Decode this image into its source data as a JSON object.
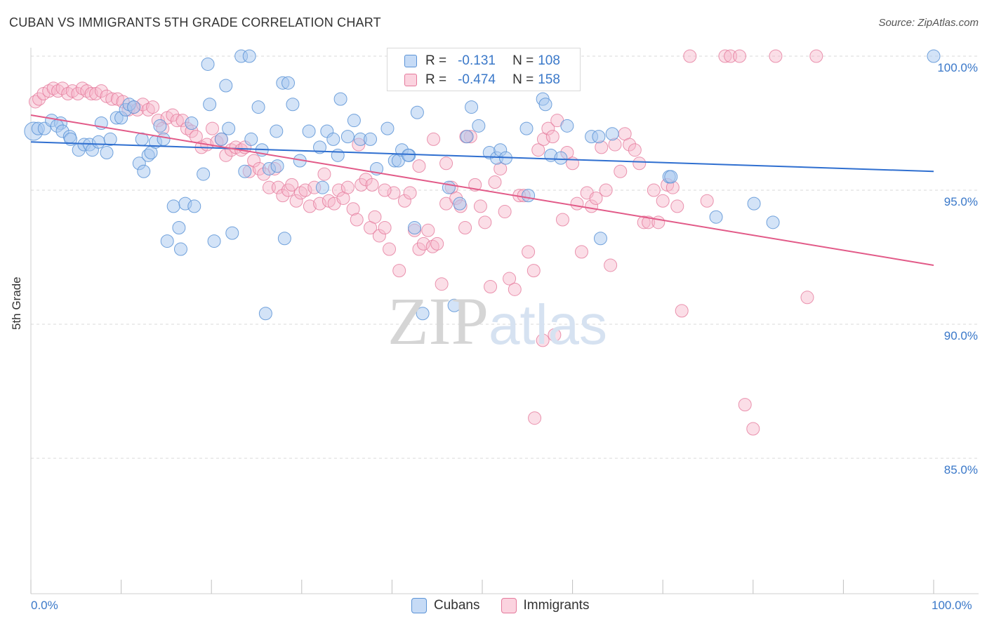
{
  "title": "CUBAN VS IMMIGRANTS 5TH GRADE CORRELATION CHART",
  "source": "Source: ZipAtlas.com",
  "watermark": {
    "zip": "ZIP",
    "atlas": "atlas"
  },
  "legend": {
    "rows": [
      {
        "r_label": "R =",
        "r_value": "-0.131",
        "n_label": "N =",
        "n_value": "108",
        "color": "#a8c8f0"
      },
      {
        "r_label": "R =",
        "r_value": "-0.474",
        "n_label": "N =",
        "n_value": "158",
        "color": "#f7b6c9"
      }
    ]
  },
  "bottom_legend": [
    {
      "label": "Cubans",
      "color": "#a8c8f0"
    },
    {
      "label": "Immigrants",
      "color": "#f7b6c9"
    }
  ],
  "colors": {
    "cuban_fill": "#a8c8f0",
    "cuban_stroke": "#5b93d6",
    "cuban_line": "#2f6fd0",
    "imm_fill": "#f7b6c9",
    "imm_stroke": "#e57a9c",
    "imm_line": "#e25a88",
    "grid": "#d8d8d8",
    "axis_text": "#3a78c9"
  },
  "chart_data": {
    "type": "scatter",
    "title": "CUBAN VS IMMIGRANTS 5TH GRADE CORRELATION CHART",
    "xlabel": "",
    "ylabel": "5th Grade",
    "xlim": [
      0,
      100
    ],
    "ylim": [
      80.5,
      100.5
    ],
    "x_tick_labels": [
      "0.0%",
      "100.0%"
    ],
    "y_ticks": [
      85,
      90,
      95,
      100
    ],
    "y_tick_labels": [
      "85.0%",
      "90.0%",
      "95.0%",
      "100.0%"
    ],
    "grid": true,
    "legend_position": "top-center",
    "series": [
      {
        "name": "Cubans",
        "trend": {
          "x": [
            0,
            100
          ],
          "y": [
            96.8,
            95.7
          ]
        },
        "points": [
          [
            0.3,
            97.2
          ],
          [
            0.8,
            97.3
          ],
          [
            1.5,
            97.3
          ],
          [
            2.3,
            97.6
          ],
          [
            3.3,
            97.5
          ],
          [
            2.9,
            97.4
          ],
          [
            3.5,
            97.2
          ],
          [
            4.3,
            97.0
          ],
          [
            4.4,
            96.9
          ],
          [
            5.3,
            96.5
          ],
          [
            5.9,
            96.7
          ],
          [
            6.5,
            96.7
          ],
          [
            6.8,
            96.5
          ],
          [
            7.5,
            96.8
          ],
          [
            7.8,
            97.5
          ],
          [
            8.4,
            96.4
          ],
          [
            8.8,
            96.9
          ],
          [
            9.5,
            97.7
          ],
          [
            10.0,
            97.7
          ],
          [
            10.5,
            98.0
          ],
          [
            10.9,
            98.2
          ],
          [
            11.4,
            98.1
          ],
          [
            12.0,
            96.0
          ],
          [
            12.3,
            96.9
          ],
          [
            12.5,
            95.7
          ],
          [
            13.0,
            96.3
          ],
          [
            13.3,
            96.4
          ],
          [
            13.8,
            96.8
          ],
          [
            14.3,
            97.4
          ],
          [
            14.7,
            96.9
          ],
          [
            15.1,
            93.1
          ],
          [
            15.8,
            94.4
          ],
          [
            16.4,
            93.6
          ],
          [
            16.6,
            92.8
          ],
          [
            17.1,
            94.5
          ],
          [
            17.8,
            97.5
          ],
          [
            18.1,
            94.4
          ],
          [
            19.1,
            95.6
          ],
          [
            19.6,
            99.7
          ],
          [
            19.8,
            98.2
          ],
          [
            20.3,
            93.1
          ],
          [
            21.1,
            96.9
          ],
          [
            21.6,
            98.9
          ],
          [
            21.9,
            97.3
          ],
          [
            22.3,
            93.4
          ],
          [
            23.3,
            100.0
          ],
          [
            24.2,
            100.0
          ],
          [
            23.7,
            95.7
          ],
          [
            24.4,
            96.9
          ],
          [
            25.2,
            98.1
          ],
          [
            25.6,
            96.5
          ],
          [
            26.4,
            95.8
          ],
          [
            27.2,
            97.2
          ],
          [
            27.9,
            99.0
          ],
          [
            28.5,
            99.0
          ],
          [
            28.1,
            93.2
          ],
          [
            27.3,
            95.9
          ],
          [
            26.0,
            90.4
          ],
          [
            29.0,
            98.2
          ],
          [
            29.8,
            96.1
          ],
          [
            30.8,
            97.2
          ],
          [
            32.0,
            96.6
          ],
          [
            32.3,
            95.1
          ],
          [
            32.8,
            97.2
          ],
          [
            33.5,
            96.9
          ],
          [
            34.0,
            96.3
          ],
          [
            34.3,
            98.4
          ],
          [
            35.1,
            97.0
          ],
          [
            35.8,
            97.6
          ],
          [
            36.5,
            96.9
          ],
          [
            37.6,
            96.9
          ],
          [
            38.3,
            95.8
          ],
          [
            39.5,
            97.3
          ],
          [
            40.3,
            96.1
          ],
          [
            40.7,
            96.1
          ],
          [
            41.1,
            96.5
          ],
          [
            41.9,
            96.3
          ],
          [
            42.5,
            93.6
          ],
          [
            42.8,
            97.9
          ],
          [
            43.4,
            90.4
          ],
          [
            46.3,
            95.1
          ],
          [
            46.9,
            90.7
          ],
          [
            47.5,
            94.5
          ],
          [
            48.3,
            97.0
          ],
          [
            48.8,
            98.1
          ],
          [
            49.6,
            97.4
          ],
          [
            50.8,
            96.4
          ],
          [
            51.6,
            96.2
          ],
          [
            52.0,
            96.5
          ],
          [
            52.6,
            96.2
          ],
          [
            54.9,
            97.3
          ],
          [
            55.1,
            94.8
          ],
          [
            56.7,
            98.4
          ],
          [
            57.0,
            98.2
          ],
          [
            57.6,
            96.3
          ],
          [
            58.7,
            96.2
          ],
          [
            59.4,
            97.4
          ],
          [
            62.1,
            97.0
          ],
          [
            62.9,
            97.0
          ],
          [
            63.1,
            93.2
          ],
          [
            64.4,
            97.1
          ],
          [
            70.7,
            95.5
          ],
          [
            70.9,
            95.5
          ],
          [
            75.9,
            94.0
          ],
          [
            80.1,
            94.5
          ],
          [
            82.2,
            93.8
          ],
          [
            100.0,
            100.0
          ],
          [
            41.8,
            96.3
          ]
        ]
      },
      {
        "name": "Immigrants",
        "trend": {
          "x": [
            0,
            100
          ],
          "y": [
            97.8,
            92.2
          ]
        },
        "points": [
          [
            0.5,
            98.3
          ],
          [
            0.9,
            98.4
          ],
          [
            1.4,
            98.6
          ],
          [
            2.0,
            98.7
          ],
          [
            2.5,
            98.8
          ],
          [
            3.0,
            98.7
          ],
          [
            3.5,
            98.8
          ],
          [
            4.1,
            98.6
          ],
          [
            4.6,
            98.7
          ],
          [
            5.2,
            98.6
          ],
          [
            5.7,
            98.8
          ],
          [
            6.2,
            98.7
          ],
          [
            6.7,
            98.6
          ],
          [
            7.2,
            98.6
          ],
          [
            7.8,
            98.7
          ],
          [
            8.4,
            98.5
          ],
          [
            9.0,
            98.4
          ],
          [
            9.6,
            98.4
          ],
          [
            10.2,
            98.3
          ],
          [
            10.8,
            98.0
          ],
          [
            11.4,
            98.1
          ],
          [
            11.8,
            98.0
          ],
          [
            12.4,
            98.2
          ],
          [
            13.0,
            98.0
          ],
          [
            13.5,
            98.1
          ],
          [
            14.1,
            97.6
          ],
          [
            14.6,
            97.3
          ],
          [
            15.1,
            97.7
          ],
          [
            15.7,
            97.8
          ],
          [
            16.2,
            97.6
          ],
          [
            16.8,
            97.6
          ],
          [
            17.3,
            97.3
          ],
          [
            17.8,
            97.2
          ],
          [
            18.3,
            97.0
          ],
          [
            18.9,
            96.6
          ],
          [
            19.5,
            96.7
          ],
          [
            20.1,
            97.3
          ],
          [
            20.6,
            96.8
          ],
          [
            21.1,
            96.9
          ],
          [
            21.6,
            96.3
          ],
          [
            22.2,
            96.5
          ],
          [
            22.7,
            96.6
          ],
          [
            23.3,
            96.5
          ],
          [
            23.7,
            96.6
          ],
          [
            24.2,
            95.7
          ],
          [
            24.7,
            96.1
          ],
          [
            25.3,
            95.8
          ],
          [
            25.8,
            95.6
          ],
          [
            26.4,
            95.1
          ],
          [
            27.0,
            95.8
          ],
          [
            27.4,
            95.1
          ],
          [
            27.9,
            94.8
          ],
          [
            28.5,
            95.0
          ],
          [
            28.9,
            95.2
          ],
          [
            29.4,
            94.6
          ],
          [
            29.9,
            94.9
          ],
          [
            30.4,
            95.0
          ],
          [
            30.9,
            94.4
          ],
          [
            31.4,
            95.1
          ],
          [
            32.0,
            94.5
          ],
          [
            32.5,
            95.6
          ],
          [
            33.0,
            94.6
          ],
          [
            33.6,
            94.5
          ],
          [
            34.1,
            95.0
          ],
          [
            34.6,
            94.7
          ],
          [
            35.1,
            95.1
          ],
          [
            35.7,
            94.3
          ],
          [
            36.1,
            93.9
          ],
          [
            36.6,
            95.2
          ],
          [
            37.1,
            95.4
          ],
          [
            37.6,
            93.6
          ],
          [
            38.1,
            94.0
          ],
          [
            38.6,
            93.3
          ],
          [
            39.2,
            93.6
          ],
          [
            39.7,
            92.8
          ],
          [
            40.2,
            94.9
          ],
          [
            40.8,
            92.0
          ],
          [
            41.4,
            94.6
          ],
          [
            42.0,
            94.9
          ],
          [
            42.5,
            93.5
          ],
          [
            43.0,
            92.8
          ],
          [
            43.5,
            93.0
          ],
          [
            44.0,
            93.5
          ],
          [
            44.5,
            92.9
          ],
          [
            45.0,
            93.0
          ],
          [
            45.5,
            91.5
          ],
          [
            46.0,
            94.5
          ],
          [
            46.6,
            95.1
          ],
          [
            47.1,
            94.7
          ],
          [
            47.6,
            94.4
          ],
          [
            48.1,
            93.6
          ],
          [
            48.7,
            97.0
          ],
          [
            49.2,
            95.2
          ],
          [
            49.8,
            94.4
          ],
          [
            50.3,
            93.8
          ],
          [
            50.9,
            91.4
          ],
          [
            51.4,
            95.3
          ],
          [
            52.0,
            95.8
          ],
          [
            52.5,
            94.2
          ],
          [
            53.0,
            91.7
          ],
          [
            53.6,
            91.3
          ],
          [
            54.1,
            94.8
          ],
          [
            54.6,
            94.8
          ],
          [
            55.1,
            92.7
          ],
          [
            55.7,
            92.0
          ],
          [
            56.2,
            96.5
          ],
          [
            56.8,
            96.9
          ],
          [
            57.3,
            97.3
          ],
          [
            57.8,
            97.0
          ],
          [
            58.3,
            97.6
          ],
          [
            58.9,
            93.9
          ],
          [
            59.4,
            96.4
          ],
          [
            60.0,
            96.0
          ],
          [
            60.5,
            94.5
          ],
          [
            61.0,
            92.7
          ],
          [
            61.6,
            94.9
          ],
          [
            62.1,
            94.4
          ],
          [
            62.6,
            94.7
          ],
          [
            63.2,
            96.6
          ],
          [
            63.7,
            95.0
          ],
          [
            64.2,
            92.2
          ],
          [
            64.7,
            96.7
          ],
          [
            65.3,
            95.7
          ],
          [
            65.8,
            97.1
          ],
          [
            66.3,
            96.7
          ],
          [
            66.9,
            96.5
          ],
          [
            67.4,
            96.0
          ],
          [
            67.9,
            93.8
          ],
          [
            68.4,
            93.8
          ],
          [
            69.0,
            95.0
          ],
          [
            69.5,
            93.8
          ],
          [
            70.0,
            94.6
          ],
          [
            70.5,
            95.2
          ],
          [
            71.1,
            95.1
          ],
          [
            71.6,
            94.4
          ],
          [
            72.1,
            90.5
          ],
          [
            73.0,
            100.0
          ],
          [
            74.9,
            94.6
          ],
          [
            76.9,
            100.0
          ],
          [
            77.5,
            100.0
          ],
          [
            78.5,
            100.0
          ],
          [
            79.1,
            87.0
          ],
          [
            80.0,
            86.1
          ],
          [
            82.5,
            100.0
          ],
          [
            86.0,
            91.0
          ],
          [
            87.0,
            100.0
          ],
          [
            58.0,
            89.6
          ],
          [
            55.8,
            86.5
          ],
          [
            56.7,
            89.4
          ],
          [
            54.7,
            100.0
          ],
          [
            52.5,
            100.0
          ],
          [
            48.2,
            97.0
          ],
          [
            46.0,
            96.0
          ],
          [
            44.6,
            96.9
          ],
          [
            43.0,
            95.9
          ],
          [
            39.2,
            95.0
          ],
          [
            37.8,
            95.2
          ],
          [
            36.3,
            96.7
          ]
        ]
      }
    ]
  }
}
